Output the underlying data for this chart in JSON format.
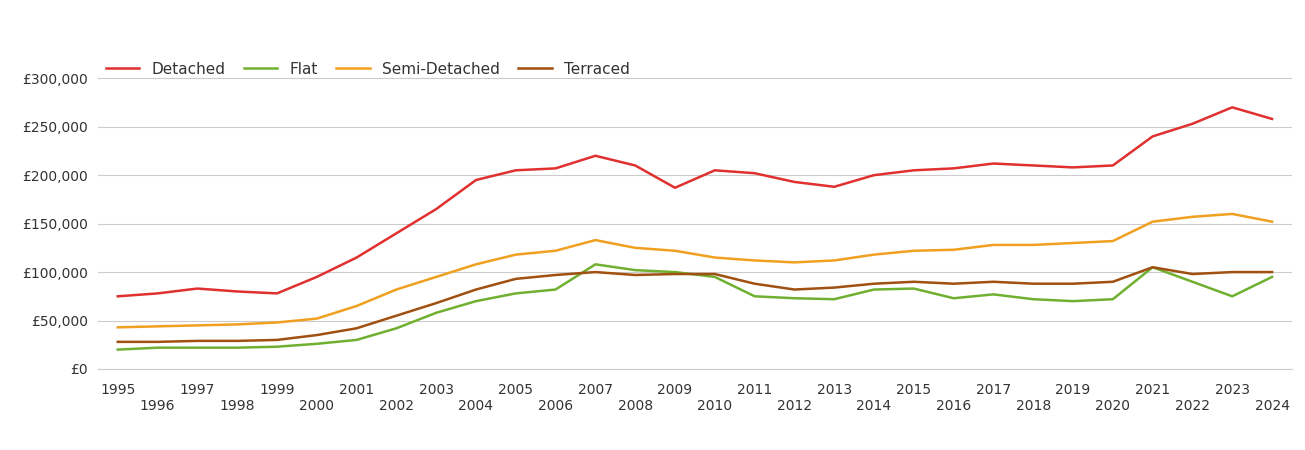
{
  "years": [
    1995,
    1996,
    1997,
    1998,
    1999,
    2000,
    2001,
    2002,
    2003,
    2004,
    2005,
    2006,
    2007,
    2008,
    2009,
    2010,
    2011,
    2012,
    2013,
    2014,
    2015,
    2016,
    2017,
    2018,
    2019,
    2020,
    2021,
    2022,
    2023,
    2024
  ],
  "detached": [
    75000,
    78000,
    83000,
    80000,
    78000,
    95000,
    115000,
    140000,
    165000,
    195000,
    205000,
    207000,
    220000,
    210000,
    187000,
    205000,
    202000,
    193000,
    188000,
    200000,
    205000,
    207000,
    212000,
    210000,
    208000,
    210000,
    240000,
    253000,
    270000,
    258000
  ],
  "flat": [
    20000,
    22000,
    22000,
    22000,
    23000,
    26000,
    30000,
    42000,
    58000,
    70000,
    78000,
    82000,
    108000,
    102000,
    100000,
    95000,
    75000,
    73000,
    72000,
    82000,
    83000,
    73000,
    77000,
    72000,
    70000,
    72000,
    105000,
    90000,
    75000,
    95000
  ],
  "semi_detached": [
    43000,
    44000,
    45000,
    46000,
    48000,
    52000,
    65000,
    82000,
    95000,
    108000,
    118000,
    122000,
    133000,
    125000,
    122000,
    115000,
    112000,
    110000,
    112000,
    118000,
    122000,
    123000,
    128000,
    128000,
    130000,
    132000,
    152000,
    157000,
    160000,
    152000
  ],
  "terraced": [
    28000,
    28000,
    29000,
    29000,
    30000,
    35000,
    42000,
    55000,
    68000,
    82000,
    93000,
    97000,
    100000,
    97000,
    98000,
    98000,
    88000,
    82000,
    84000,
    88000,
    90000,
    88000,
    90000,
    88000,
    88000,
    90000,
    105000,
    98000,
    100000,
    100000
  ],
  "colors": {
    "detached": "#e03030",
    "flat": "#70b030",
    "semi_detached": "#f0a020",
    "terraced": "#a05010"
  },
  "ylim": [
    0,
    325000
  ],
  "yticks": [
    0,
    50000,
    100000,
    150000,
    200000,
    250000,
    300000
  ],
  "background_color": "#ffffff",
  "grid_color": "#cccccc",
  "linewidth": 1.8,
  "tick_fontsize": 10,
  "legend_fontsize": 11
}
